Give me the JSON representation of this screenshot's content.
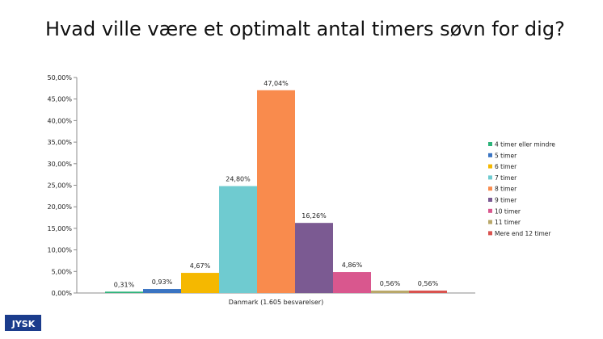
{
  "title": "Hvad ville være et optimalt antal timers søvn for dig?",
  "logo_text": "JYSK",
  "chart_data": {
    "type": "bar",
    "categories": [
      "Danmark (1.605 besvarelser)"
    ],
    "series": [
      {
        "name": "4 timer eller mindre",
        "values": [
          0.31
        ],
        "label": "0,31%",
        "color": "#2db37a"
      },
      {
        "name": "5 timer",
        "values": [
          0.93
        ],
        "label": "0,93%",
        "color": "#3a74c2"
      },
      {
        "name": "6 timer",
        "values": [
          4.67
        ],
        "label": "4,67%",
        "color": "#f5b800"
      },
      {
        "name": "7 timer",
        "values": [
          24.8
        ],
        "label": "24,80%",
        "color": "#6fcbd0"
      },
      {
        "name": "8 timer",
        "values": [
          47.04
        ],
        "label": "47,04%",
        "color": "#f98b4d"
      },
      {
        "name": "9 timer",
        "values": [
          16.26
        ],
        "label": "16,26%",
        "color": "#7b5a92"
      },
      {
        "name": "10 timer",
        "values": [
          4.86
        ],
        "label": "4,86%",
        "color": "#d9578e"
      },
      {
        "name": "11 timer",
        "values": [
          0.56
        ],
        "label": "0,56%",
        "color": "#b9a86a"
      },
      {
        "name": "Mere end 12 timer",
        "values": [
          0.56
        ],
        "label": "0,56%",
        "color": "#d9534f"
      }
    ],
    "yticks": [
      "0,00%",
      "5,00%",
      "10,00%",
      "15,00%",
      "20,00%",
      "25,00%",
      "30,00%",
      "35,00%",
      "40,00%",
      "45,00%",
      "50,00%"
    ],
    "ylim": [
      0,
      50
    ],
    "grid": false,
    "legend_position": "right"
  }
}
